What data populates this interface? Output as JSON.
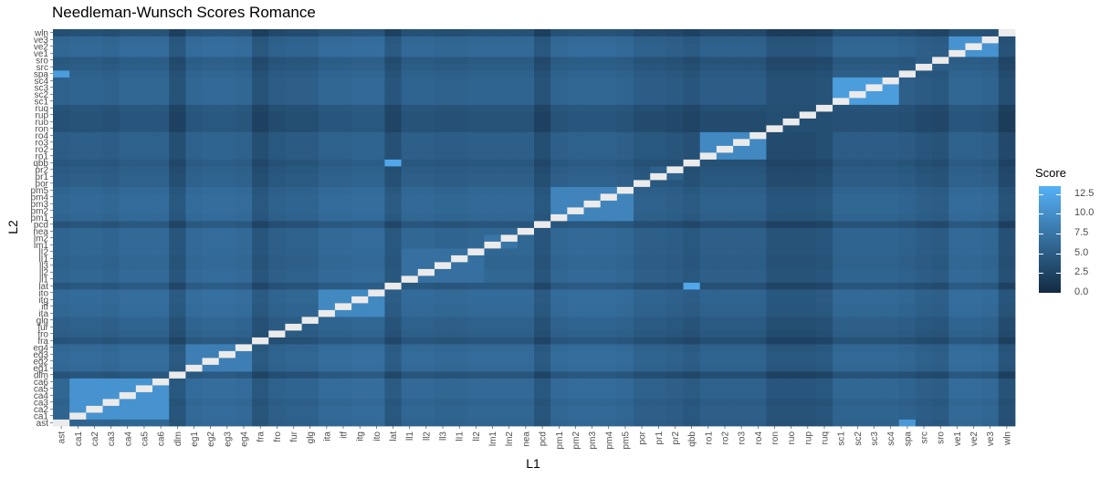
{
  "chart_data": {
    "type": "heatmap",
    "title": "Needleman-Wunsch Scores Romance",
    "xlabel": "L1",
    "ylabel": "L2",
    "x_categories": [
      "ast",
      "ca1",
      "ca2",
      "ca3",
      "ca4",
      "ca5",
      "ca6",
      "dlm",
      "eg1",
      "eg2",
      "eg3",
      "eg4",
      "fra",
      "fro",
      "fur",
      "glg",
      "ita",
      "itf",
      "itg",
      "ito",
      "lat",
      "ll1",
      "ll2",
      "ll3",
      "lI1",
      "lI2",
      "lm1",
      "lm2",
      "nea",
      "pcd",
      "pm1",
      "pm2",
      "pm3",
      "pm4",
      "pm5",
      "por",
      "pr1",
      "pr2",
      "qbb",
      "ro1",
      "ro2",
      "ro3",
      "ro4",
      "ron",
      "ruo",
      "rup",
      "ruq",
      "sc1",
      "sc2",
      "sc3",
      "sc4",
      "spa",
      "src",
      "sro",
      "ve1",
      "ve2",
      "ve3",
      "wln"
    ],
    "y_categories": [
      "ast",
      "ca1",
      "ca2",
      "ca3",
      "ca4",
      "ca5",
      "ca6",
      "dlm",
      "eg1",
      "eg2",
      "eg3",
      "eg4",
      "fra",
      "fro",
      "fur",
      "glg",
      "ita",
      "itf",
      "itg",
      "ito",
      "lat",
      "ll1",
      "ll2",
      "ll3",
      "lI1",
      "lI2",
      "lm1",
      "lm2",
      "nea",
      "pcd",
      "pm1",
      "pm2",
      "pm3",
      "pm4",
      "pm5",
      "por",
      "pr1",
      "pr2",
      "qbb",
      "ro1",
      "ro2",
      "ro3",
      "ro4",
      "ron",
      "ruo",
      "rup",
      "ruq",
      "sc1",
      "sc2",
      "sc3",
      "sc4",
      "spa",
      "src",
      "sro",
      "ve1",
      "ve2",
      "ve3",
      "wln"
    ],
    "groups": [
      {
        "name": "ca",
        "indices": [
          1,
          2,
          3,
          4,
          5,
          6
        ],
        "score": 10.5
      },
      {
        "name": "eg",
        "indices": [
          8,
          9,
          10,
          11
        ],
        "score": 8.5
      },
      {
        "name": "it",
        "indices": [
          16,
          17,
          18,
          19
        ],
        "score": 9.5
      },
      {
        "name": "ll",
        "indices": [
          21,
          22,
          23,
          24,
          25
        ],
        "score": 7.0
      },
      {
        "name": "lm",
        "indices": [
          26,
          27
        ],
        "score": 7.5
      },
      {
        "name": "pm",
        "indices": [
          30,
          31,
          32,
          33,
          34
        ],
        "score": 9.0
      },
      {
        "name": "pr",
        "indices": [
          36,
          37
        ],
        "score": 5.5
      },
      {
        "name": "ro",
        "indices": [
          39,
          40,
          41,
          42
        ],
        "score": 9.5
      },
      {
        "name": "ru",
        "indices": [
          43,
          44,
          45,
          46
        ],
        "score": 3.5
      },
      {
        "name": "sc",
        "indices": [
          47,
          48,
          49,
          50
        ],
        "score": 11.5
      },
      {
        "name": "sr",
        "indices": [
          52,
          53
        ],
        "score": 5.0
      },
      {
        "name": "ve",
        "indices": [
          54,
          55,
          56
        ],
        "score": 10.5
      }
    ],
    "language_base_scores": [
      5.5,
      6.0,
      6.0,
      5.5,
      6.5,
      6.5,
      6.5,
      2.5,
      6.5,
      7.0,
      7.0,
      6.5,
      2.5,
      4.5,
      5.0,
      5.0,
      6.5,
      6.5,
      7.0,
      7.0,
      3.0,
      6.0,
      6.0,
      5.5,
      5.5,
      6.0,
      6.0,
      6.0,
      6.0,
      2.5,
      6.0,
      6.5,
      6.5,
      6.5,
      6.0,
      4.5,
      4.5,
      4.0,
      3.0,
      4.5,
      4.5,
      4.5,
      4.5,
      2.0,
      2.0,
      2.0,
      2.5,
      5.5,
      5.5,
      5.5,
      5.5,
      5.0,
      4.0,
      3.5,
      6.5,
      6.5,
      6.0,
      1.5
    ],
    "outliers": [
      {
        "x": "qbb",
        "y": "lat",
        "score": 12.5
      },
      {
        "x": "lat",
        "y": "qbb",
        "score": 12.5
      },
      {
        "x": "ast",
        "y": "spa",
        "score": 11.5
      },
      {
        "x": "spa",
        "y": "ast",
        "score": 11.0
      }
    ],
    "diagonal_score": null,
    "diagonal_color": "#ebebeb",
    "legend": {
      "title": "Score",
      "position": "right",
      "ticks": [
        "0.0",
        "2.5",
        "5.0",
        "7.5",
        "10.0",
        "12.5"
      ],
      "range": [
        0,
        13.5
      ],
      "low_color": "#132b43",
      "high_color": "#56b1f7"
    }
  }
}
